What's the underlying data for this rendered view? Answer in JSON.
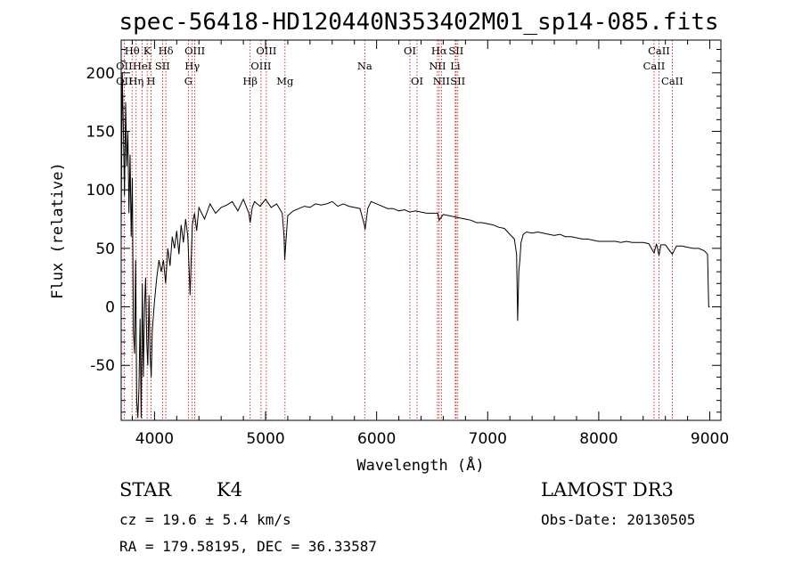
{
  "chart_data": {
    "type": "line",
    "title": "spec-56418-HD120440N353402M01_sp14-085.fits",
    "xlabel": "Wavelength (Å)",
    "ylabel": "Flux (relative)",
    "xlim": [
      3700,
      9100
    ],
    "ylim": [
      -97,
      228
    ],
    "xticks": [
      4000,
      5000,
      6000,
      7000,
      8000,
      9000
    ],
    "yticks": [
      -50,
      0,
      50,
      100,
      150,
      200
    ],
    "series": [
      {
        "name": "flux",
        "points": [
          [
            3700,
            70
          ],
          [
            3710,
            200
          ],
          [
            3720,
            150
          ],
          [
            3730,
            95
          ],
          [
            3740,
            175
          ],
          [
            3750,
            120
          ],
          [
            3760,
            150
          ],
          [
            3770,
            80
          ],
          [
            3780,
            130
          ],
          [
            3790,
            60
          ],
          [
            3800,
            110
          ],
          [
            3810,
            -20
          ],
          [
            3820,
            -40
          ],
          [
            3830,
            40
          ],
          [
            3840,
            -80
          ],
          [
            3850,
            -95
          ],
          [
            3860,
            -70
          ],
          [
            3870,
            -10
          ],
          [
            3880,
            -95
          ],
          [
            3890,
            20
          ],
          [
            3900,
            -60
          ],
          [
            3910,
            0
          ],
          [
            3920,
            25
          ],
          [
            3930,
            -30
          ],
          [
            3940,
            -50
          ],
          [
            3950,
            10
          ],
          [
            3960,
            -40
          ],
          [
            3970,
            -60
          ],
          [
            3980,
            -20
          ],
          [
            4000,
            5
          ],
          [
            4020,
            25
          ],
          [
            4040,
            40
          ],
          [
            4060,
            30
          ],
          [
            4080,
            40
          ],
          [
            4100,
            20
          ],
          [
            4120,
            50
          ],
          [
            4140,
            35
          ],
          [
            4160,
            60
          ],
          [
            4180,
            50
          ],
          [
            4200,
            65
          ],
          [
            4220,
            45
          ],
          [
            4240,
            70
          ],
          [
            4260,
            55
          ],
          [
            4280,
            75
          ],
          [
            4300,
            60
          ],
          [
            4320,
            10
          ],
          [
            4340,
            70
          ],
          [
            4360,
            80
          ],
          [
            4380,
            65
          ],
          [
            4400,
            85
          ],
          [
            4450,
            75
          ],
          [
            4500,
            88
          ],
          [
            4550,
            80
          ],
          [
            4600,
            85
          ],
          [
            4650,
            87
          ],
          [
            4700,
            90
          ],
          [
            4750,
            82
          ],
          [
            4800,
            92
          ],
          [
            4850,
            80
          ],
          [
            4861,
            72
          ],
          [
            4880,
            85
          ],
          [
            4900,
            90
          ],
          [
            4950,
            86
          ],
          [
            5000,
            92
          ],
          [
            5050,
            85
          ],
          [
            5100,
            88
          ],
          [
            5150,
            80
          ],
          [
            5167,
            60
          ],
          [
            5172,
            40
          ],
          [
            5183,
            55
          ],
          [
            5200,
            78
          ],
          [
            5250,
            82
          ],
          [
            5300,
            84
          ],
          [
            5350,
            86
          ],
          [
            5400,
            85
          ],
          [
            5450,
            88
          ],
          [
            5500,
            87
          ],
          [
            5550,
            88
          ],
          [
            5600,
            90
          ],
          [
            5650,
            86
          ],
          [
            5700,
            88
          ],
          [
            5750,
            86
          ],
          [
            5800,
            85
          ],
          [
            5850,
            84
          ],
          [
            5890,
            70
          ],
          [
            5896,
            66
          ],
          [
            5920,
            84
          ],
          [
            5950,
            90
          ],
          [
            6000,
            88
          ],
          [
            6050,
            86
          ],
          [
            6100,
            84
          ],
          [
            6150,
            84
          ],
          [
            6200,
            82
          ],
          [
            6250,
            83
          ],
          [
            6300,
            81
          ],
          [
            6350,
            82
          ],
          [
            6400,
            81
          ],
          [
            6450,
            80
          ],
          [
            6500,
            80
          ],
          [
            6550,
            80
          ],
          [
            6563,
            74
          ],
          [
            6600,
            79
          ],
          [
            6650,
            78
          ],
          [
            6700,
            77
          ],
          [
            6750,
            76
          ],
          [
            6800,
            75
          ],
          [
            6850,
            74
          ],
          [
            6900,
            72
          ],
          [
            6950,
            72
          ],
          [
            7000,
            71
          ],
          [
            7050,
            70
          ],
          [
            7100,
            68
          ],
          [
            7150,
            67
          ],
          [
            7200,
            62
          ],
          [
            7240,
            58
          ],
          [
            7260,
            45
          ],
          [
            7270,
            -12
          ],
          [
            7280,
            30
          ],
          [
            7290,
            40
          ],
          [
            7300,
            55
          ],
          [
            7320,
            62
          ],
          [
            7350,
            64
          ],
          [
            7400,
            63
          ],
          [
            7450,
            64
          ],
          [
            7500,
            63
          ],
          [
            7550,
            62
          ],
          [
            7600,
            61
          ],
          [
            7650,
            62
          ],
          [
            7700,
            60
          ],
          [
            7750,
            60
          ],
          [
            7800,
            59
          ],
          [
            7850,
            58
          ],
          [
            7900,
            58
          ],
          [
            7950,
            57
          ],
          [
            8000,
            56
          ],
          [
            8050,
            56
          ],
          [
            8100,
            56
          ],
          [
            8150,
            56
          ],
          [
            8200,
            55
          ],
          [
            8250,
            56
          ],
          [
            8300,
            55
          ],
          [
            8350,
            55
          ],
          [
            8400,
            55
          ],
          [
            8450,
            54
          ],
          [
            8498,
            46
          ],
          [
            8520,
            54
          ],
          [
            8542,
            44
          ],
          [
            8560,
            53
          ],
          [
            8600,
            53
          ],
          [
            8662,
            45
          ],
          [
            8700,
            52
          ],
          [
            8750,
            52
          ],
          [
            8800,
            51
          ],
          [
            8850,
            50
          ],
          [
            8900,
            50
          ],
          [
            8950,
            48
          ],
          [
            8980,
            45
          ],
          [
            8990,
            0
          ],
          [
            9000,
            0
          ]
        ]
      }
    ],
    "line_markers": [
      {
        "label": "Hθ",
        "wl": 3798,
        "row": 0
      },
      {
        "label": "OII",
        "wl": 3727,
        "row": 1
      },
      {
        "label": "OII",
        "wl": 3727,
        "row": 2
      },
      {
        "label": "K",
        "wl": 3934,
        "row": 0
      },
      {
        "label": "HeI",
        "wl": 3889,
        "row": 1
      },
      {
        "label": "Hη",
        "wl": 3835,
        "row": 2
      },
      {
        "label": "SII",
        "wl": 4072,
        "row": 1
      },
      {
        "label": "H",
        "wl": 3969,
        "row": 2
      },
      {
        "label": "Hδ",
        "wl": 4102,
        "row": 0
      },
      {
        "label": "OIII",
        "wl": 4363,
        "row": 0
      },
      {
        "label": "Hγ",
        "wl": 4340,
        "row": 1
      },
      {
        "label": "G",
        "wl": 4305,
        "row": 2
      },
      {
        "label": "Hβ",
        "wl": 4861,
        "row": 2
      },
      {
        "label": "OIII",
        "wl": 5007,
        "row": 0
      },
      {
        "label": "OIII",
        "wl": 4959,
        "row": 1
      },
      {
        "label": "Mg",
        "wl": 5175,
        "row": 2
      },
      {
        "label": "Na",
        "wl": 5893,
        "row": 1
      },
      {
        "label": "OI",
        "wl": 6300,
        "row": 0
      },
      {
        "label": "OI",
        "wl": 6364,
        "row": 2
      },
      {
        "label": "Hα",
        "wl": 6563,
        "row": 0
      },
      {
        "label": "NII",
        "wl": 6548,
        "row": 1
      },
      {
        "label": "NII",
        "wl": 6583,
        "row": 2
      },
      {
        "label": "SII",
        "wl": 6716,
        "row": 0
      },
      {
        "label": "Li",
        "wl": 6708,
        "row": 1
      },
      {
        "label": "SII",
        "wl": 6731,
        "row": 2
      },
      {
        "label": "CaII",
        "wl": 8542,
        "row": 0
      },
      {
        "label": "CaII",
        "wl": 8498,
        "row": 1
      },
      {
        "label": "CaII",
        "wl": 8662,
        "row": 2
      }
    ]
  },
  "footer": {
    "class_label": "STAR",
    "subclass": "K4",
    "survey": "LAMOST DR3",
    "cz": "cz = 19.6 ± 5.4 km/s",
    "obs_date": "Obs-Date: 20130505",
    "coords": "RA = 179.58195, DEC =  36.33587"
  }
}
